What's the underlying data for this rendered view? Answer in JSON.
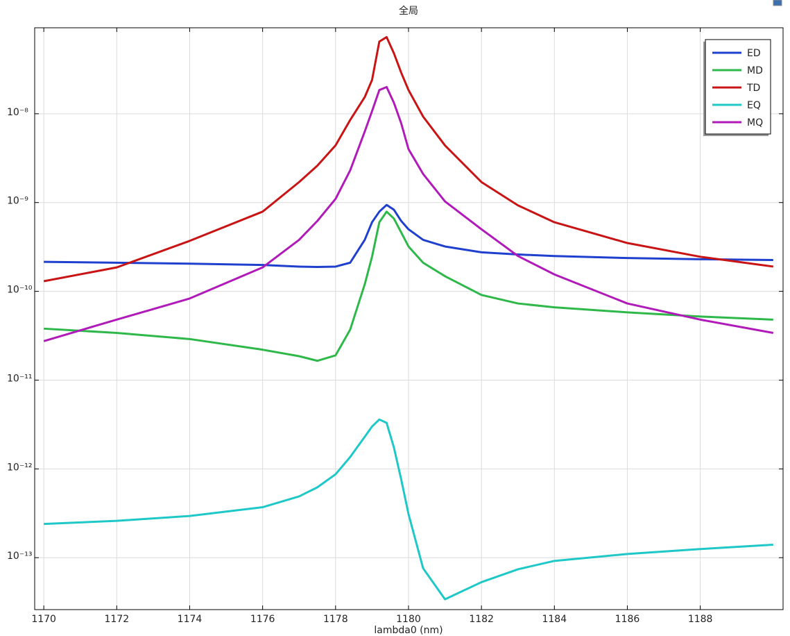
{
  "chart_data": {
    "type": "line",
    "title": "全局",
    "x_label": "lambda0 (nm)",
    "log_y": true,
    "grid": true,
    "legend": "top-right",
    "x": [
      1170,
      1172,
      1174,
      1176,
      1177,
      1177.5,
      1178,
      1178.4,
      1178.8,
      1179,
      1179.2,
      1179.4,
      1179.6,
      1179.8,
      1180,
      1180.4,
      1181,
      1182,
      1183,
      1184,
      1186,
      1188,
      1190
    ],
    "series": [
      {
        "name": "ED",
        "color": "#1f3fcf",
        "values": [
          2.15e-10,
          2.1e-10,
          2.05e-10,
          1.98e-10,
          1.9e-10,
          1.88e-10,
          1.9e-10,
          2.1e-10,
          3.8e-10,
          6e-10,
          7.9e-10,
          9.4e-10,
          8.3e-10,
          6.2e-10,
          5e-10,
          3.8e-10,
          3.2e-10,
          2.75e-10,
          2.6e-10,
          2.5e-10,
          2.37e-10,
          2.3e-10,
          2.25e-10
        ]
      },
      {
        "name": "MD",
        "color": "#2eb84a",
        "values": [
          3.8e-11,
          3.4e-11,
          2.9e-11,
          2.2e-11,
          1.86e-11,
          1.65e-11,
          1.9e-11,
          3.7e-11,
          1.2e-10,
          2.45e-10,
          6e-10,
          7.9e-10,
          6.6e-10,
          4.6e-10,
          3.2e-10,
          2.1e-10,
          1.48e-10,
          9.1e-11,
          7.3e-11,
          6.6e-11,
          5.8e-11,
          5.2e-11,
          4.8e-11
        ]
      },
      {
        "name": "TD",
        "color": "#c81414",
        "values": [
          1.3e-10,
          1.86e-10,
          3.7e-10,
          7.9e-10,
          1.7e-09,
          2.6e-09,
          4.4e-09,
          8.5e-09,
          1.54e-08,
          2.4e-08,
          6.5e-08,
          7.3e-08,
          4.8e-08,
          2.9e-08,
          1.85e-08,
          9.3e-09,
          4.4e-09,
          1.7e-09,
          9.3e-10,
          6e-10,
          3.5e-10,
          2.45e-10,
          1.9e-10
        ]
      },
      {
        "name": "EQ",
        "color": "#1fc8c8",
        "values": [
          2.4e-13,
          2.6e-13,
          2.95e-13,
          3.7e-13,
          4.9e-13,
          6.2e-13,
          8.7e-13,
          1.36e-12,
          2.3e-12,
          3e-12,
          3.6e-12,
          3.3e-12,
          1.74e-12,
          7.6e-13,
          3.1e-13,
          7.6e-14,
          3.4e-14,
          5.3e-14,
          7.4e-14,
          9.2e-14,
          1.1e-13,
          1.25e-13,
          1.4e-13
        ]
      },
      {
        "name": "MQ",
        "color": "#b01ab8",
        "values": [
          2.75e-11,
          4.8e-11,
          8.3e-11,
          1.86e-10,
          3.8e-10,
          6.2e-10,
          1.1e-09,
          2.3e-09,
          6.3e-09,
          1.07e-08,
          1.85e-08,
          2e-08,
          1.33e-08,
          7.8e-09,
          4e-09,
          2.1e-09,
          1.03e-09,
          5e-10,
          2.5e-10,
          1.55e-10,
          7.3e-11,
          4.8e-11,
          3.4e-11
        ]
      }
    ],
    "xlim": [
      1169.75,
      1190.27
    ],
    "xticks": [
      1170,
      1172,
      1174,
      1176,
      1178,
      1180,
      1182,
      1184,
      1186,
      1188
    ],
    "ylim": [
      2.6e-14,
      9.3e-08
    ],
    "yticks": [
      {
        "value": 1e-13,
        "label": "10⁻¹³"
      },
      {
        "value": 1e-12,
        "label": "10⁻¹²"
      },
      {
        "value": 1e-11,
        "label": "10⁻¹¹"
      },
      {
        "value": 1e-10,
        "label": "10⁻¹⁰"
      },
      {
        "value": 1e-09,
        "label": "10⁻⁹"
      },
      {
        "value": 1e-08,
        "label": "10⁻⁸"
      }
    ]
  }
}
